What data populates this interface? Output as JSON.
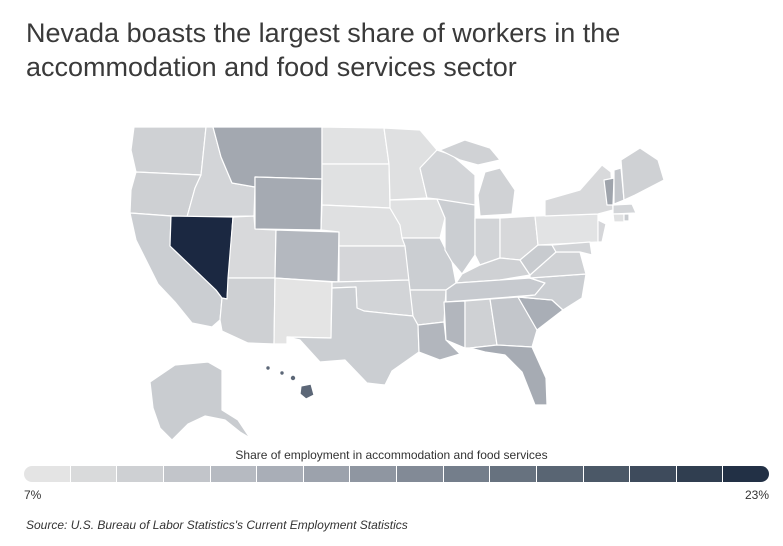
{
  "title_line1": "Nevada boasts the largest share of workers in the",
  "title_line2": "accommodation and food services sector",
  "legend": {
    "title": "Share of employment in accommodation and food services",
    "min_label": "7%",
    "max_label": "23%",
    "min": 7,
    "max": 23,
    "colors": [
      "#e4e4e4",
      "#d9dadb",
      "#ced0d3",
      "#c2c5ca",
      "#b6bac1",
      "#a9aeb7",
      "#9ca2ac",
      "#8f96a1",
      "#828a96",
      "#747e8b",
      "#67727f",
      "#596573",
      "#4b5867",
      "#3e4b5c",
      "#303e50",
      "#223045"
    ]
  },
  "source": "Source: U.S. Bureau of Labor Statistics's Current Employment Statistics",
  "colors": {
    "background": "#ffffff",
    "state_border": "#ffffff",
    "title": "#3a3a3a"
  }
}
